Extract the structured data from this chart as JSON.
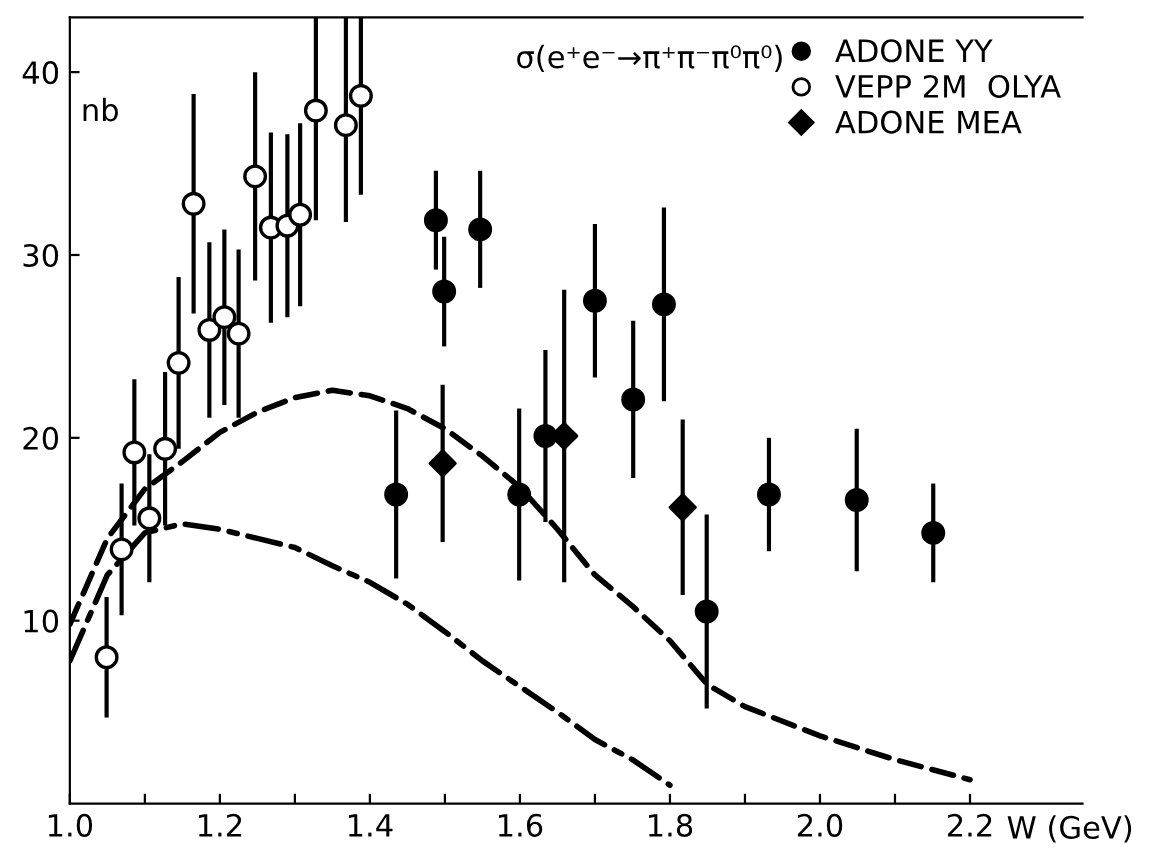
{
  "chart_data": {
    "type": "scatter",
    "title": "σ(e⁺e⁻→π⁺π⁻π⁰π⁰)",
    "xlabel": "W (GeV)",
    "ylabel": "nb",
    "xlim": [
      1.0,
      2.35
    ],
    "ylim": [
      0,
      43
    ],
    "xticks": [
      {
        "value": 1.0,
        "label": "1.0"
      },
      {
        "value": 1.1,
        "label": null
      },
      1.2,
      {
        "value": 1.3,
        "label": null
      },
      1.4,
      {
        "value": 1.5,
        "label": null
      },
      1.6,
      {
        "value": 1.7,
        "label": null
      },
      1.8,
      {
        "value": 1.9,
        "label": null
      },
      {
        "value": 2.0,
        "label": "2.0"
      },
      {
        "value": 2.1,
        "label": null
      },
      2.2
    ],
    "yticks": [
      10,
      20,
      30,
      40
    ],
    "grid": false,
    "legend": "top right",
    "series": [
      {
        "name": "ADONE YY",
        "color": "#000000",
        "marker": "circle",
        "x": [
          1.435,
          1.488,
          1.499,
          1.547,
          1.599,
          1.634,
          1.7,
          1.751,
          1.792,
          1.849,
          1.932,
          2.049,
          2.151
        ],
        "values": [
          16.9,
          31.9,
          28.0,
          31.4,
          16.9,
          20.1,
          27.5,
          22.1,
          27.3,
          10.5,
          16.9,
          16.6,
          14.8
        ],
        "errors": [
          4.6,
          2.7,
          3.0,
          3.2,
          4.7,
          4.7,
          4.2,
          4.3,
          5.3,
          5.3,
          3.1,
          3.9,
          2.7
        ]
      },
      {
        "name": "VEPP 2M  OLYA",
        "color": "#ffffff",
        "marker": "circle",
        "x": [
          1.049,
          1.069,
          1.086,
          1.106,
          1.127,
          1.145,
          1.165,
          1.186,
          1.206,
          1.225,
          1.247,
          1.268,
          1.29,
          1.307,
          1.328,
          1.368,
          1.388
        ],
        "values": [
          8.0,
          13.9,
          19.2,
          15.6,
          19.4,
          24.1,
          32.8,
          25.9,
          26.6,
          25.7,
          34.3,
          31.5,
          31.6,
          32.2,
          37.9,
          37.1,
          38.7
        ],
        "errors": [
          3.3,
          3.6,
          4.0,
          3.5,
          4.2,
          4.7,
          6.0,
          4.8,
          4.8,
          4.6,
          5.7,
          5.2,
          5.0,
          5.0,
          [
            31.9,
            43
          ],
          [
            31.8,
            43
          ],
          [
            33.3,
            43
          ]
        ]
      },
      {
        "name": "ADONE MEA",
        "color": "#000000",
        "marker": "diamond",
        "x": [
          1.497,
          1.659,
          1.817
        ],
        "values": [
          18.6,
          20.1,
          16.2
        ],
        "errors": [
          4.3,
          8.0,
          4.8
        ]
      },
      {
        "type": "line",
        "line_style": "dashed",
        "color": "#000000",
        "x": [
          1.0,
          1.05,
          1.1,
          1.15,
          1.2,
          1.25,
          1.3,
          1.35,
          1.4,
          1.45,
          1.5,
          1.55,
          1.6,
          1.65,
          1.7,
          1.75,
          1.8,
          1.85,
          1.9,
          2.0,
          2.1,
          2.2
        ],
        "values": [
          9.8,
          14.5,
          17.2,
          18.7,
          20.3,
          21.4,
          22.2,
          22.6,
          22.3,
          21.6,
          20.5,
          19.0,
          17.3,
          15.0,
          12.5,
          10.8,
          8.9,
          6.5,
          5.3,
          3.7,
          2.4,
          1.3
        ]
      },
      {
        "type": "line",
        "line_style": "dashdot",
        "color": "#000000",
        "x": [
          1.0,
          1.05,
          1.1,
          1.15,
          1.2,
          1.25,
          1.3,
          1.35,
          1.4,
          1.45,
          1.5,
          1.55,
          1.6,
          1.65,
          1.7,
          1.75,
          1.8
        ],
        "values": [
          7.8,
          12.5,
          14.8,
          15.3,
          15.0,
          14.5,
          14.0,
          13.0,
          12.1,
          10.9,
          9.4,
          7.8,
          6.4,
          5.0,
          3.5,
          2.4,
          1.0
        ]
      }
    ]
  }
}
